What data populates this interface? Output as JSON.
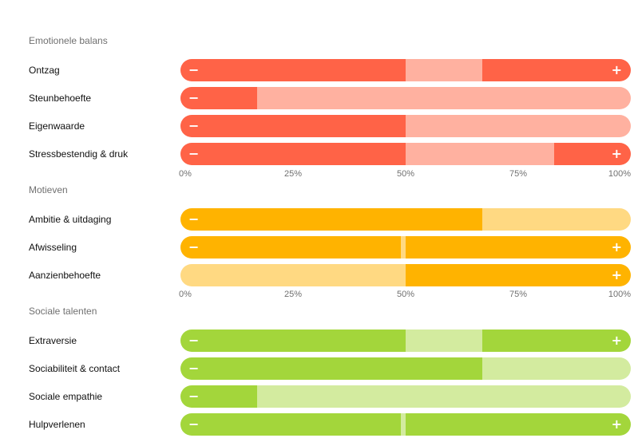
{
  "chart_data": {
    "type": "bar",
    "x_ticks": [
      "0%",
      "25%",
      "50%",
      "75%",
      "100%"
    ],
    "ticks_pos": [
      0,
      25,
      50,
      75,
      100
    ],
    "sections": [
      {
        "title": "Emotionele balans",
        "colors": {
          "strong": "#FF6347",
          "light": "#FFB1A0"
        },
        "rows": [
          {
            "label": "Ontzag",
            "segments": [
              {
                "from": 0,
                "to": 50,
                "tone": "strong"
              },
              {
                "from": 50,
                "to": 67,
                "tone": "light"
              },
              {
                "from": 67,
                "to": 100,
                "tone": "strong"
              }
            ],
            "minus": "−",
            "plus": "+"
          },
          {
            "label": "Steunbehoefte",
            "segments": [
              {
                "from": 0,
                "to": 17,
                "tone": "strong"
              },
              {
                "from": 17,
                "to": 100,
                "tone": "light"
              }
            ],
            "minus": "−",
            "plus": ""
          },
          {
            "label": "Eigenwaarde",
            "segments": [
              {
                "from": 0,
                "to": 50,
                "tone": "strong"
              },
              {
                "from": 50,
                "to": 100,
                "tone": "light"
              }
            ],
            "minus": "−",
            "plus": ""
          },
          {
            "label": "Stressbestendig & druk",
            "segments": [
              {
                "from": 0,
                "to": 50,
                "tone": "strong"
              },
              {
                "from": 50,
                "to": 83,
                "tone": "light"
              },
              {
                "from": 83,
                "to": 100,
                "tone": "strong"
              }
            ],
            "minus": "−",
            "plus": "+"
          }
        ]
      },
      {
        "title": "Motieven",
        "colors": {
          "strong": "#FFB300",
          "light": "#FFD982"
        },
        "rows": [
          {
            "label": "Ambitie & uitdaging",
            "segments": [
              {
                "from": 0,
                "to": 67,
                "tone": "strong"
              },
              {
                "from": 67,
                "to": 100,
                "tone": "light"
              }
            ],
            "minus": "−",
            "plus": ""
          },
          {
            "label": "Afwisseling",
            "segments": [
              {
                "from": 0,
                "to": 49,
                "tone": "strong"
              },
              {
                "from": 49,
                "to": 50,
                "tone": "light"
              },
              {
                "from": 50,
                "to": 100,
                "tone": "strong"
              }
            ],
            "minus": "−",
            "plus": "+"
          },
          {
            "label": "Aanzienbehoefte",
            "segments": [
              {
                "from": 0,
                "to": 50,
                "tone": "light"
              },
              {
                "from": 50,
                "to": 100,
                "tone": "strong"
              }
            ],
            "minus": "",
            "plus": "+"
          }
        ]
      },
      {
        "title": "Sociale talenten",
        "colors": {
          "strong": "#A3D63B",
          "light": "#D3EB9F"
        },
        "rows": [
          {
            "label": "Extraversie",
            "segments": [
              {
                "from": 0,
                "to": 50,
                "tone": "strong"
              },
              {
                "from": 50,
                "to": 67,
                "tone": "light"
              },
              {
                "from": 67,
                "to": 100,
                "tone": "strong"
              }
            ],
            "minus": "−",
            "plus": "+"
          },
          {
            "label": "Sociabiliteit & contact",
            "segments": [
              {
                "from": 0,
                "to": 67,
                "tone": "strong"
              },
              {
                "from": 67,
                "to": 100,
                "tone": "light"
              }
            ],
            "minus": "−",
            "plus": ""
          },
          {
            "label": "Sociale empathie",
            "segments": [
              {
                "from": 0,
                "to": 17,
                "tone": "strong"
              },
              {
                "from": 17,
                "to": 100,
                "tone": "light"
              }
            ],
            "minus": "−",
            "plus": ""
          },
          {
            "label": "Hulpverlenen",
            "segments": [
              {
                "from": 0,
                "to": 49,
                "tone": "strong"
              },
              {
                "from": 49,
                "to": 50,
                "tone": "light"
              },
              {
                "from": 50,
                "to": 100,
                "tone": "strong"
              }
            ],
            "minus": "−",
            "plus": "+"
          }
        ]
      }
    ]
  }
}
